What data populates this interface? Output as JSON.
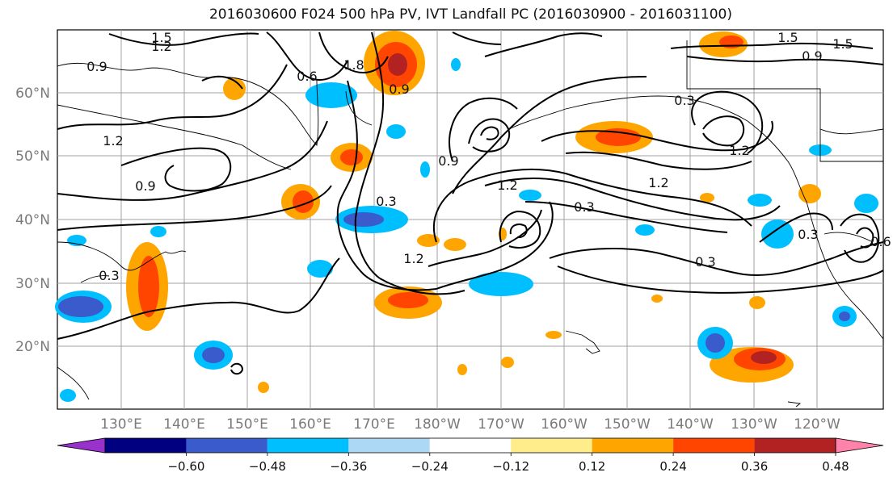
{
  "title": "2016030600 F024 500 hPa PV, IVT Landfall PC (2016030900 - 2016031100)",
  "lat_labels": [
    "20°N",
    "30°N",
    "40°N",
    "50°N",
    "60°N"
  ],
  "lon_labels": [
    "130°E",
    "140°E",
    "150°E",
    "160°E",
    "170°E",
    "180°W",
    "170°W",
    "160°W",
    "150°W",
    "140°W",
    "130°W",
    "120°W"
  ],
  "contour_labels": [
    "1.5",
    "1.2",
    "0.9",
    "0.6",
    "1.8",
    "0.9",
    "1.5",
    "0.9",
    "0.3",
    "1.2",
    "0.3",
    "1.2",
    "0.9",
    "1.2",
    "0.3",
    "0.3",
    "1.2",
    "0.3",
    "1.2",
    "0.9",
    "0.3",
    "0.6",
    "1.5"
  ],
  "colorbar": {
    "colors": [
      "#9932cc",
      "#000080",
      "#3a5bcb",
      "#00bfff",
      "#add8f5",
      "#ffffff",
      "#ffec8b",
      "#ffa500",
      "#ff4500",
      "#b22222",
      "#ff82ab"
    ],
    "tick_labels": [
      "−0.60",
      "−0.48",
      "−0.36",
      "−0.24",
      "−0.12",
      "0.12",
      "0.24",
      "0.36",
      "0.48",
      "0.60"
    ]
  }
}
